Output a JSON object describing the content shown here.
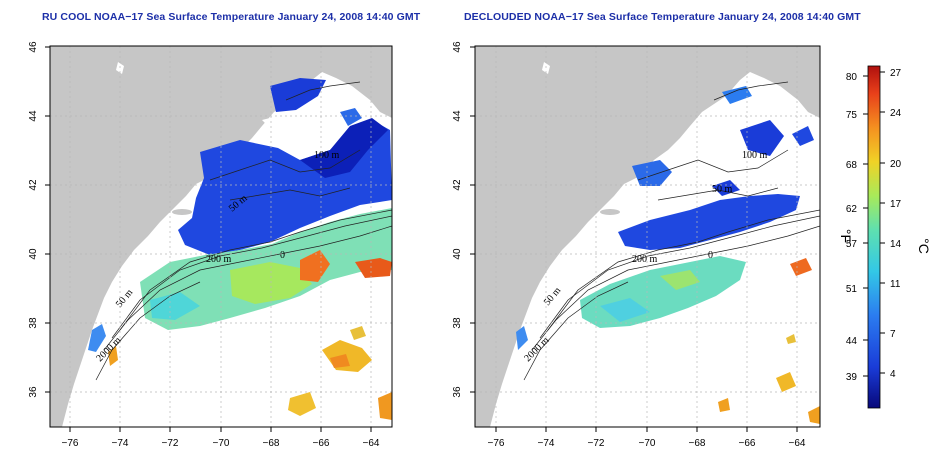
{
  "titles": {
    "left": "RU COOL NOAA−17 Sea Surface Temperature January 24, 2008 14:40 GMT",
    "right": "DECLOUDED NOAA−17 Sea Surface Temperature January 24, 2008 14:40 GMT"
  },
  "axes": {
    "lon_ticks": [
      "−76",
      "−74",
      "−72",
      "−70",
      "−68",
      "−66",
      "−64"
    ],
    "lat_ticks": [
      "46",
      "44",
      "42",
      "40",
      "38",
      "36"
    ]
  },
  "contour_labels": {
    "left": [
      "100 m",
      "200 m",
      "50 m",
      "50 m",
      "2000 m",
      "0"
    ],
    "right": [
      "100 m",
      "200 m",
      "50 m",
      "50 m",
      "2000 m",
      "0"
    ]
  },
  "colorbar": {
    "fahrenheit_ticks": [
      "80",
      "75",
      "68",
      "62",
      "57",
      "51",
      "44",
      "39"
    ],
    "celsius_ticks": [
      "27",
      "24",
      "20",
      "17",
      "14",
      "11",
      "7",
      "4"
    ],
    "unit_f": "°F",
    "unit_c": "°C",
    "colors": [
      "#08087a",
      "#1a3cd8",
      "#2b7cf0",
      "#33c8e6",
      "#5ee0b0",
      "#a8ea5a",
      "#f0d226",
      "#f59020",
      "#e8401a",
      "#b0100e"
    ]
  },
  "colors": {
    "land": "#c6c6c6",
    "ocean": "#ffffff",
    "title": "#1c2fa8",
    "grid": "#b8b8b8"
  }
}
